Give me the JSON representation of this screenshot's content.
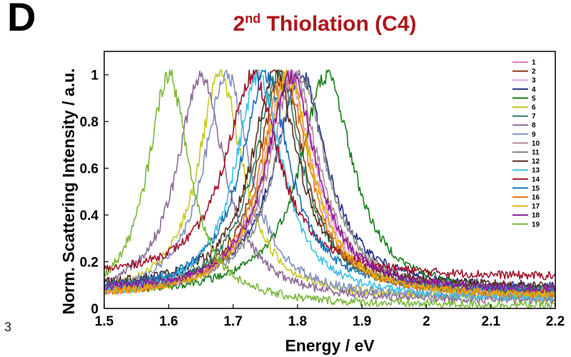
{
  "panel": {
    "letter": "D"
  },
  "edge_glyph": "3",
  "title": {
    "main": "2",
    "sup": "nd",
    "rest": " Thiolation (C4)"
  },
  "chart_data": {
    "type": "line",
    "title": "2nd Thiolation (C4)",
    "xlabel": "Energy / eV",
    "ylabel": "Norm. Scattering Intensity / a.u.",
    "xlim": [
      1.5,
      2.2
    ],
    "ylim": [
      0,
      1.1
    ],
    "xticks": [
      "1.5",
      "1.6",
      "1.7",
      "1.8",
      "1.9",
      "2",
      "2.1",
      "2.2"
    ],
    "yticks": [
      "0",
      "0.2",
      "0.4",
      "0.6",
      "0.8",
      "1"
    ],
    "grid": false,
    "legend_position": "top-right",
    "series": [
      {
        "name": "1",
        "color": "#e07fc7",
        "peak": 1.79,
        "gamma": 0.095,
        "floor": 0.05
      },
      {
        "name": "2",
        "color": "#8b3a12",
        "peak": 1.775,
        "gamma": 0.09,
        "floor": 0.06
      },
      {
        "name": "3",
        "color": "#d9a6e6",
        "peak": 1.785,
        "gamma": 0.092,
        "floor": 0.05
      },
      {
        "name": "4",
        "color": "#1e2e8c",
        "peak": 1.805,
        "gamma": 0.098,
        "floor": 0.08
      },
      {
        "name": "5",
        "color": "#1a7d1a",
        "peak": 1.845,
        "gamma": 0.1,
        "floor": 0.06
      },
      {
        "name": "6",
        "color": "#c8c81e",
        "peak": 1.68,
        "gamma": 0.085,
        "floor": 0.04
      },
      {
        "name": "7",
        "color": "#2f7a62",
        "peak": 1.77,
        "gamma": 0.092,
        "floor": 0.06
      },
      {
        "name": "8",
        "color": "#8c6a99",
        "peak": 1.65,
        "gamma": 0.09,
        "floor": 0.03
      },
      {
        "name": "9",
        "color": "#8090c0",
        "peak": 1.69,
        "gamma": 0.088,
        "floor": 0.04
      },
      {
        "name": "10",
        "color": "#b088a0",
        "peak": 1.795,
        "gamma": 0.094,
        "floor": 0.07
      },
      {
        "name": "11",
        "color": "#8a8a8a",
        "peak": 1.805,
        "gamma": 0.096,
        "floor": 0.06
      },
      {
        "name": "12",
        "color": "#5a2a1a",
        "peak": 1.765,
        "gamma": 0.09,
        "floor": 0.09
      },
      {
        "name": "13",
        "color": "#3cc0e8",
        "peak": 1.74,
        "gamma": 0.09,
        "floor": 0.04
      },
      {
        "name": "14",
        "color": "#a0102a",
        "peak": 1.73,
        "gamma": 0.1,
        "floor": 0.13
      },
      {
        "name": "15",
        "color": "#1a6fb0",
        "peak": 1.75,
        "gamma": 0.092,
        "floor": 0.07
      },
      {
        "name": "16",
        "color": "#e07a1a",
        "peak": 1.78,
        "gamma": 0.09,
        "floor": 0.05
      },
      {
        "name": "17",
        "color": "#e8b000",
        "peak": 1.785,
        "gamma": 0.09,
        "floor": 0.05
      },
      {
        "name": "18",
        "color": "#8a1a9a",
        "peak": 1.79,
        "gamma": 0.094,
        "floor": 0.07
      },
      {
        "name": "19",
        "color": "#7ab83a",
        "peak": 1.6,
        "gamma": 0.08,
        "floor": 0.01
      }
    ]
  }
}
